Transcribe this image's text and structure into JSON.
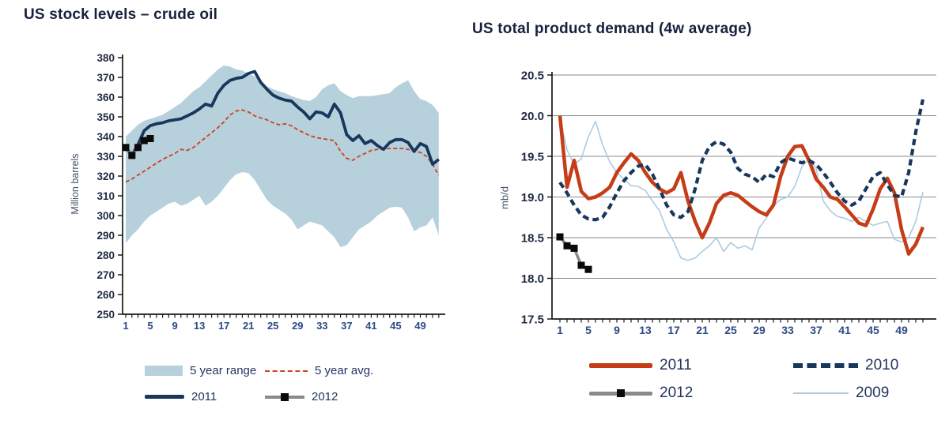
{
  "colors": {
    "navy": "#17375d",
    "red_solid": "#c63c16",
    "red_dashed": "#d0421f",
    "band_blue": "#b6d0dc",
    "light_blue": "#adcbe0",
    "gray_2012": "#8a8a8a",
    "marker_black": "#0a0a0a",
    "axis": "#1a1a1a",
    "grid": "#8a8a8a",
    "title": "#18213c",
    "tick_label_y": "#222b44",
    "tick_label_x": "#2b4a86"
  },
  "chart_data": [
    {
      "type": "line",
      "title": "US stock levels – crude oil",
      "ylabel": "Million barrels",
      "xlabel": "",
      "x_unit": "week of year",
      "x_start": 1,
      "weeks": 52,
      "ylim": [
        250,
        380
      ],
      "ytick_step": 10,
      "xticks": [
        1,
        5,
        9,
        13,
        17,
        21,
        25,
        29,
        33,
        37,
        41,
        45,
        49
      ],
      "grid": false,
      "legend_position": "bottom",
      "series": [
        {
          "name": "5 year range",
          "type": "band",
          "z": 1,
          "color": "#b6d0dc",
          "upper": [
            340,
            343,
            346,
            348,
            349,
            350,
            351,
            353,
            355,
            357,
            360,
            363,
            365,
            368,
            371,
            374,
            376,
            375.5,
            374,
            373.5,
            372,
            370.5,
            368,
            365.5,
            364,
            363,
            362,
            360.5,
            359.5,
            358.5,
            358,
            360,
            364,
            366,
            367,
            363,
            361,
            359.5,
            360.5,
            360.5,
            360.5,
            361,
            361.5,
            362,
            365,
            367,
            368.5,
            363,
            359,
            358,
            356,
            352
          ],
          "lower": [
            286,
            290,
            293,
            297,
            300,
            302,
            304,
            306,
            307,
            305,
            306,
            308,
            310,
            305,
            307,
            310,
            314,
            318,
            321,
            322,
            321.5,
            318,
            313,
            308,
            305,
            303,
            301,
            298,
            293,
            295,
            297,
            296,
            295,
            292,
            289,
            284,
            285,
            289,
            293,
            295,
            297,
            300,
            302,
            304,
            304.5,
            304,
            299,
            292,
            294,
            295,
            299,
            290
          ]
        },
        {
          "name": "5 year avg.",
          "type": "dashed",
          "z": 2,
          "color": "#d0421f",
          "width": 1.8,
          "dash": [
            5,
            3
          ],
          "values": [
            317,
            318.5,
            320.5,
            322.5,
            324.5,
            326.5,
            328.5,
            330,
            331.5,
            333.5,
            333,
            334.5,
            337,
            339.5,
            342,
            344.5,
            347.5,
            351,
            353,
            353.5,
            352.5,
            350.5,
            349.5,
            348.5,
            347,
            346,
            346.5,
            345.5,
            343.5,
            342,
            340.5,
            339.5,
            339,
            338.5,
            338,
            332.5,
            329,
            328,
            330,
            331.5,
            333,
            333.5,
            333.5,
            334,
            334,
            334,
            333.5,
            332.5,
            332,
            330,
            326,
            320.5
          ]
        },
        {
          "name": "2011",
          "type": "line",
          "z": 3,
          "color": "#17375d",
          "width": 3.8,
          "values": [
            334.5,
            330.5,
            336,
            343,
            345.5,
            346.5,
            347,
            348,
            348.5,
            349,
            350.5,
            352,
            354,
            356.5,
            355.5,
            362,
            366,
            368.5,
            369.5,
            370,
            372,
            373,
            367.5,
            364,
            361,
            359.5,
            358.5,
            358,
            355,
            352.5,
            349,
            352.5,
            352,
            350,
            356.5,
            352,
            341,
            338,
            340.5,
            336.5,
            338,
            335.5,
            333.5,
            337,
            338.5,
            338.5,
            337,
            332.5,
            336.5,
            335,
            326,
            328.5
          ]
        },
        {
          "name": "2012",
          "type": "line-marker",
          "z": 4,
          "color": "#8a8a8a",
          "marker_color": "#0a0a0a",
          "width": 3.2,
          "values": [
            334.5,
            330.5,
            334.5,
            338,
            339
          ]
        }
      ]
    },
    {
      "type": "line",
      "title": "US total product demand (4w average)",
      "ylabel": "mb/d",
      "xlabel": "",
      "x_unit": "week of year",
      "x_start": 1,
      "weeks": 52,
      "ylim": [
        17.5,
        20.5
      ],
      "ytick_step": 0.5,
      "xticks": [
        1,
        5,
        9,
        13,
        17,
        21,
        25,
        29,
        33,
        37,
        41,
        45,
        49
      ],
      "grid": true,
      "legend_position": "bottom",
      "series": [
        {
          "name": "2011",
          "type": "line",
          "z": 2,
          "color": "#c63c16",
          "width": 4.5,
          "values": [
            20.0,
            19.12,
            19.45,
            19.07,
            18.98,
            19.0,
            19.05,
            19.12,
            19.3,
            19.42,
            19.53,
            19.45,
            19.3,
            19.18,
            19.1,
            19.05,
            19.1,
            19.3,
            18.95,
            18.7,
            18.5,
            18.68,
            18.92,
            19.02,
            19.05,
            19.02,
            18.95,
            18.88,
            18.82,
            18.78,
            18.9,
            19.25,
            19.5,
            19.62,
            19.63,
            19.45,
            19.22,
            19.12,
            19.0,
            18.97,
            18.88,
            18.78,
            18.68,
            18.65,
            18.85,
            19.1,
            19.23,
            19.05,
            18.6,
            18.3,
            18.42,
            18.63
          ]
        },
        {
          "name": "2010",
          "type": "dashed",
          "z": 3,
          "color": "#17375d",
          "width": 4.2,
          "dash": [
            8,
            5
          ],
          "values": [
            19.18,
            19.05,
            18.9,
            18.78,
            18.73,
            18.72,
            18.75,
            18.88,
            19.05,
            19.2,
            19.3,
            19.38,
            19.4,
            19.28,
            19.1,
            18.9,
            18.78,
            18.75,
            18.82,
            19.1,
            19.45,
            19.62,
            19.68,
            19.65,
            19.55,
            19.35,
            19.28,
            19.25,
            19.18,
            19.28,
            19.25,
            19.42,
            19.48,
            19.45,
            19.42,
            19.45,
            19.4,
            19.3,
            19.18,
            19.05,
            18.95,
            18.9,
            18.95,
            19.1,
            19.25,
            19.3,
            19.15,
            19.02,
            19.0,
            19.3,
            19.8,
            20.2
          ]
        },
        {
          "name": "2012",
          "type": "line-marker",
          "z": 4,
          "color": "#8a8a8a",
          "marker_color": "#0a0a0a",
          "width": 3.5,
          "values": [
            18.51,
            18.4,
            18.37,
            18.16,
            18.11
          ]
        },
        {
          "name": "2009",
          "type": "line",
          "z": 1,
          "color": "#adcbe0",
          "width": 1.6,
          "values": [
            19.97,
            19.58,
            19.4,
            19.47,
            19.74,
            19.93,
            19.64,
            19.43,
            19.3,
            19.22,
            19.14,
            19.13,
            19.08,
            18.95,
            18.83,
            18.6,
            18.45,
            18.25,
            18.22,
            18.25,
            18.33,
            18.4,
            18.5,
            18.33,
            18.44,
            18.37,
            18.4,
            18.35,
            18.62,
            18.74,
            18.89,
            18.97,
            19.0,
            19.13,
            19.37,
            19.48,
            19.35,
            18.95,
            18.83,
            18.76,
            18.74,
            18.7,
            18.75,
            18.7,
            18.65,
            18.68,
            18.7,
            18.48,
            18.45,
            18.5,
            18.7,
            19.06
          ]
        }
      ]
    }
  ]
}
